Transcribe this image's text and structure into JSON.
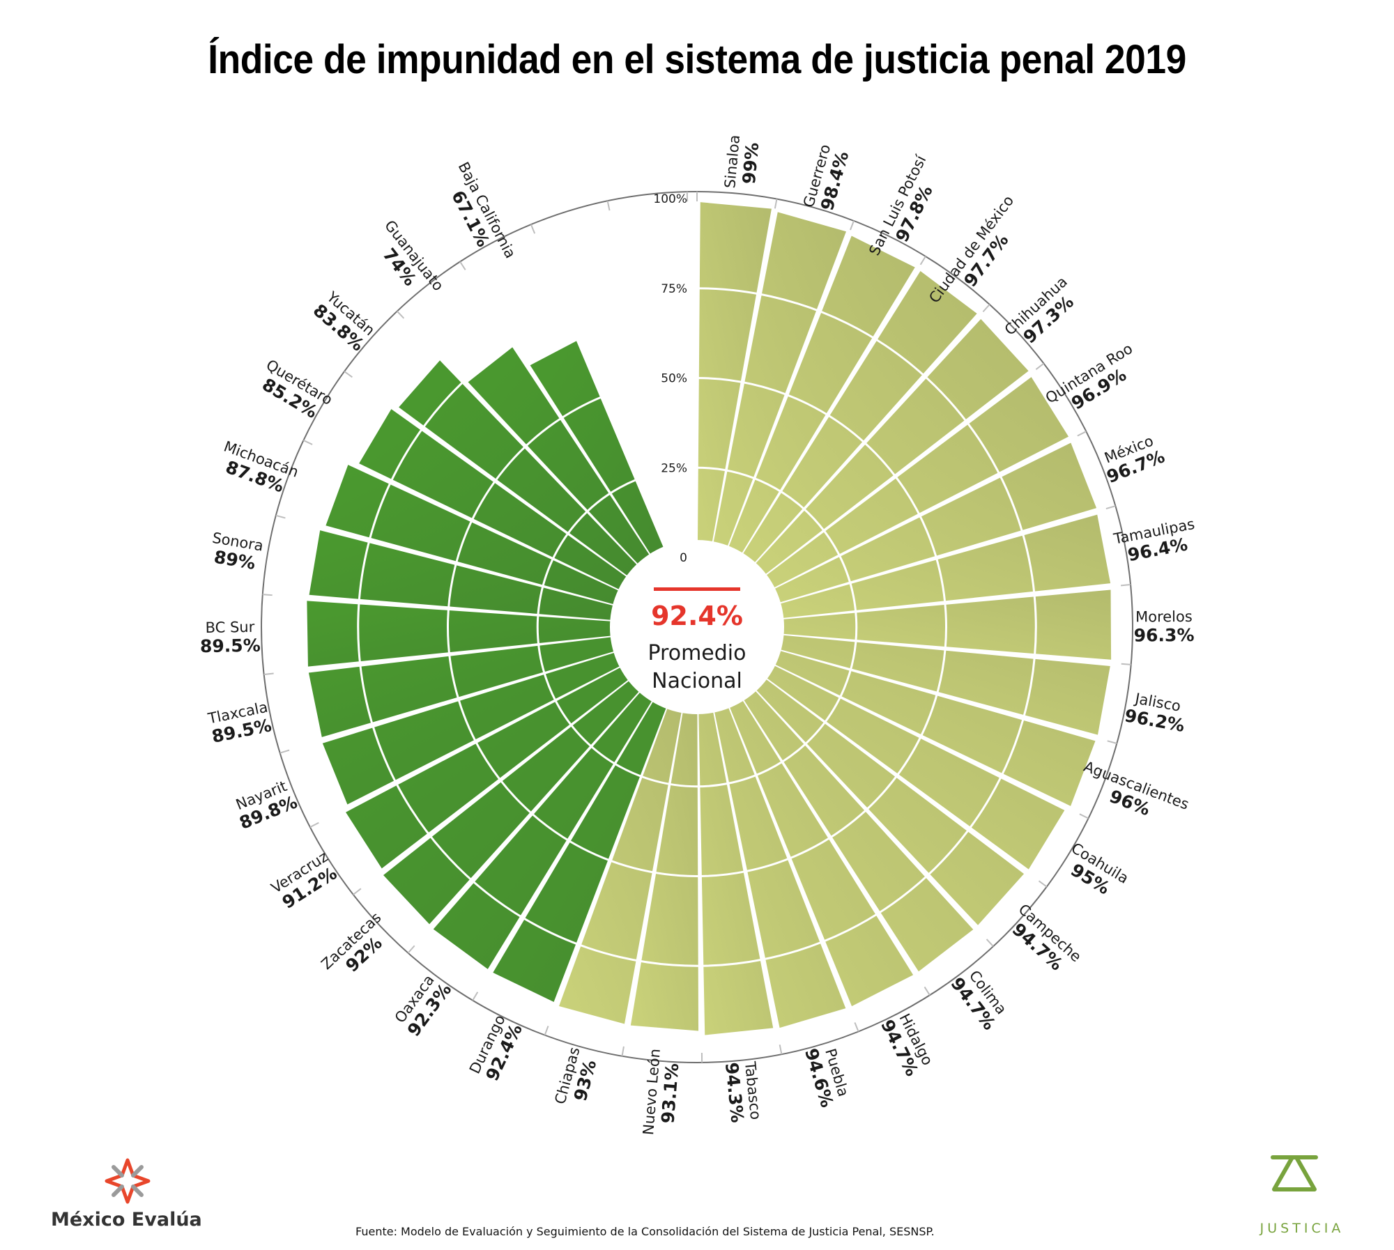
{
  "title": "Índice de impunidad en el sistema de justicia penal 2019",
  "center": {
    "value": "92.4%",
    "label_line1": "Promedio",
    "label_line2": "Nacional"
  },
  "source": "Fuente: Modelo de Evaluación y Seguimiento de la Consolidación del Sistema de Justicia Penal, SESNSP.",
  "logos": {
    "left": "México Evalúa",
    "right": "JUSTICIA"
  },
  "colors": {
    "above_avg": "#bcc374",
    "below_avg": "#4a962f",
    "accent": "#e5352b",
    "justicia": "#78a33d"
  },
  "chart_data": {
    "type": "bar",
    "subtype": "radial",
    "title": "Índice de impunidad en el sistema de justicia penal 2019",
    "ylim": [
      0,
      100
    ],
    "ticks": [
      "0",
      "25%",
      "50%",
      "75%",
      "100%"
    ],
    "tick_values": [
      0,
      25,
      50,
      75,
      100
    ],
    "average": 92.4,
    "categories": [
      "Sinaloa",
      "Guerrero",
      "San Luis Potosí",
      "Ciudad de México",
      "Chihuahua",
      "Quintana Roo",
      "México",
      "Tamaulipas",
      "Morelos",
      "Jalisco",
      "Aguascalientes",
      "Coahuila",
      "Campeche",
      "Colima",
      "Hidalgo",
      "Puebla",
      "Tabasco",
      "Nuevo León",
      "Chiapas",
      "Durango",
      "Oaxaca",
      "Zacatecas",
      "Veracruz",
      "Nayarit",
      "Tlaxcala",
      "BC Sur",
      "Sonora",
      "Michoacán",
      "Querétaro",
      "Yucatán",
      "Guanajuato",
      "Baja California"
    ],
    "values": [
      99,
      98.4,
      97.8,
      97.7,
      97.3,
      96.9,
      96.7,
      96.4,
      96.3,
      96.2,
      96,
      95,
      94.7,
      94.7,
      94.7,
      94.6,
      94.3,
      93.1,
      93,
      92.4,
      92.3,
      92,
      91.2,
      89.8,
      89.5,
      89.5,
      89,
      87.8,
      85.2,
      83.8,
      74,
      67.1
    ],
    "value_labels": [
      "99%",
      "98.4%",
      "97.8%",
      "97.7%",
      "97.3%",
      "96.9%",
      "96.7%",
      "96.4%",
      "96.3%",
      "96.2%",
      "96%",
      "95%",
      "94.7%",
      "94.7%",
      "94.7%",
      "94.6%",
      "94.3%",
      "93.1%",
      "93%",
      "92.4%",
      "92.3%",
      "92%",
      "91.2%",
      "89.8%",
      "89.5%",
      "89.5%",
      "89%",
      "87.8%",
      "85.2%",
      "83.8%",
      "74%",
      "67.1%"
    ],
    "group": [
      "above",
      "above",
      "above",
      "above",
      "above",
      "above",
      "above",
      "above",
      "above",
      "above",
      "above",
      "above",
      "above",
      "above",
      "above",
      "above",
      "above",
      "above",
      "above",
      "below",
      "below",
      "below",
      "below",
      "below",
      "below",
      "below",
      "below",
      "below",
      "below",
      "below",
      "below",
      "below"
    ]
  }
}
